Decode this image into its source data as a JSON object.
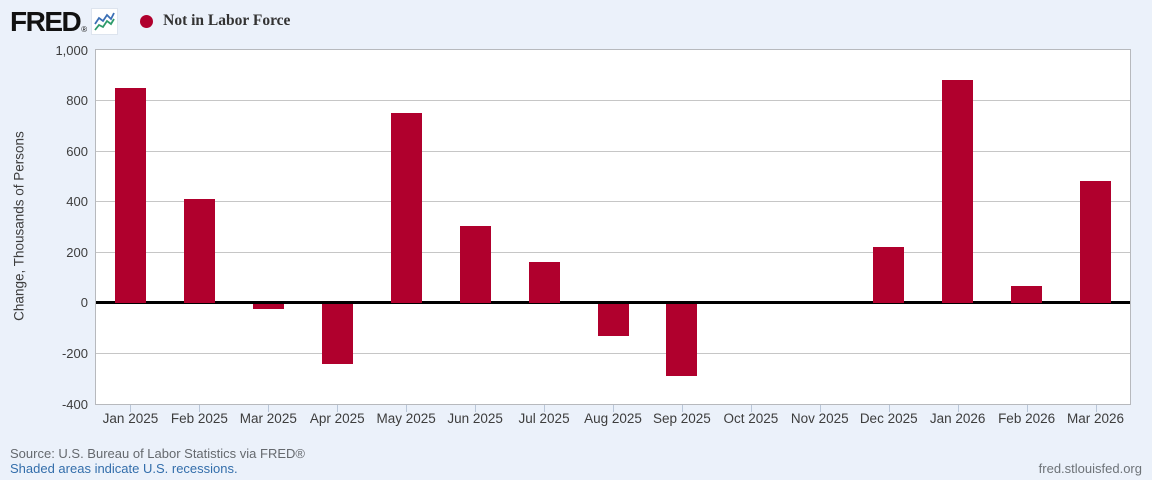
{
  "header": {
    "logo_text": "FRED",
    "logo_registered": "®",
    "legend": {
      "marker_color": "#b0002d",
      "label": "Not in Labor Force"
    }
  },
  "chart_data": {
    "type": "bar",
    "series_name": "Not in Labor Force",
    "categories": [
      "Jan 2025",
      "Feb 2025",
      "Mar 2025",
      "Apr 2025",
      "May 2025",
      "Jun 2025",
      "Jul 2025",
      "Aug 2025",
      "Sep 2025",
      "Oct 2025",
      "Nov 2025",
      "Dec 2025",
      "Jan 2026",
      "Feb 2026",
      "Mar 2026"
    ],
    "values": [
      850,
      410,
      -25,
      -240,
      750,
      305,
      160,
      -130,
      -290,
      0,
      0,
      220,
      880,
      65,
      480
    ],
    "ylabel": "Change, Thousands of Persons",
    "xlabel": "",
    "ylim": [
      -400,
      1000
    ],
    "ytick_step": 200,
    "ytick_labels": [
      "1,000",
      "800",
      "600",
      "400",
      "200",
      "0",
      "-200",
      "-400"
    ],
    "ytick_values": [
      1000,
      800,
      600,
      400,
      200,
      0,
      -200,
      -400
    ],
    "grid": true,
    "legend_position": "top-left",
    "bar_color": "#b0002d"
  },
  "footer": {
    "source": "Source: U.S. Bureau of Labor Statistics via FRED®",
    "recession_note": "Shaded areas indicate U.S. recessions.",
    "site": "fred.stlouisfed.org"
  },
  "colors": {
    "background": "#ebf1fa",
    "plot_background": "#ffffff",
    "bar": "#b0002d",
    "gridline": "#c6c6c6",
    "zero_line": "#000000",
    "axis_text": "#3d3d3d",
    "source_text": "#65696e",
    "link_blue": "#336eab"
  }
}
